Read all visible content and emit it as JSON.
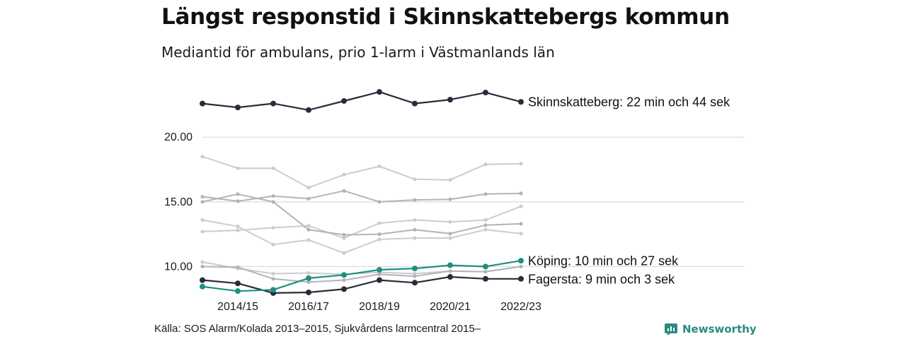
{
  "header": {
    "title": "Längst responstid i Skinnskattebergs kommun",
    "subtitle": "Mediantid för ambulans, prio 1-larm i Västmanlands län"
  },
  "footer": {
    "source": "Källa: SOS Alarm/Kolada 2013–2015, Sjukvårdens larmcentral 2015–",
    "brand": "Newsworthy"
  },
  "colors": {
    "highlight_dark": "#2b2b3a",
    "highlight_teal": "#1f9080",
    "background_light": "#cccccc",
    "background_mid": "#b4b4b4",
    "grid": "#dddddd"
  },
  "chart_data": {
    "type": "line",
    "x": [
      "2013/14",
      "2014/15",
      "2015/16",
      "2016/17",
      "2017/18",
      "2018/19",
      "2019/20",
      "2020/21",
      "2021/22",
      "2022/23"
    ],
    "x_tick_labels": [
      "2014/15",
      "2016/17",
      "2018/19",
      "2020/21",
      "2022/23"
    ],
    "y_tick_labels": [
      "10.00",
      "15.00",
      "20.00"
    ],
    "y_ticks": [
      10,
      15,
      20
    ],
    "ylim": [
      7.4,
      24.6
    ],
    "grid": "horizontal",
    "series": [
      {
        "style": "light",
        "values": [
          18.5,
          17.6,
          17.6,
          16.1,
          17.1,
          17.75,
          16.75,
          16.7,
          17.9,
          17.95
        ]
      },
      {
        "style": "light",
        "values": [
          13.6,
          13.1,
          11.7,
          12.05,
          11.05,
          12.1,
          12.2,
          12.2,
          12.85,
          12.55
        ]
      },
      {
        "style": "light",
        "values": [
          12.7,
          12.8,
          13.0,
          13.15,
          12.2,
          13.35,
          13.6,
          13.45,
          13.6,
          14.65
        ]
      },
      {
        "style": "light",
        "values": [
          10.35,
          9.85,
          9.45,
          9.5,
          9.4,
          9.55,
          9.45,
          9.65,
          9.6,
          10.0
        ]
      },
      {
        "style": "mid",
        "values": [
          15.0,
          15.6,
          15.0,
          12.85,
          12.45,
          12.5,
          12.85,
          12.55,
          13.2,
          13.3
        ]
      },
      {
        "style": "mid",
        "values": [
          15.4,
          15.05,
          15.45,
          15.25,
          15.85,
          15.0,
          15.15,
          15.2,
          15.6,
          15.65
        ]
      },
      {
        "style": "mid",
        "values": [
          10.0,
          9.95,
          9.05,
          8.8,
          8.95,
          9.4,
          9.25,
          9.65,
          9.6,
          10.0
        ]
      },
      {
        "style": "dark",
        "name": "Skinnskatteberg",
        "label": "Skinnskatteberg: 22 min och 44 sek",
        "values": [
          22.6,
          22.3,
          22.6,
          22.1,
          22.8,
          23.5,
          22.6,
          22.9,
          23.45,
          22.73
        ]
      },
      {
        "style": "teal",
        "name": "Köping",
        "label": "Köping: 10 min och 27 sek",
        "values": [
          8.45,
          8.1,
          8.2,
          9.1,
          9.35,
          9.75,
          9.85,
          10.1,
          10.0,
          10.45
        ]
      },
      {
        "style": "dark",
        "name": "Fagersta",
        "label": "Fagersta: 9 min och 3 sek",
        "values": [
          8.95,
          8.7,
          7.95,
          8.0,
          8.25,
          8.95,
          8.75,
          9.2,
          9.05,
          9.05
        ]
      }
    ]
  }
}
